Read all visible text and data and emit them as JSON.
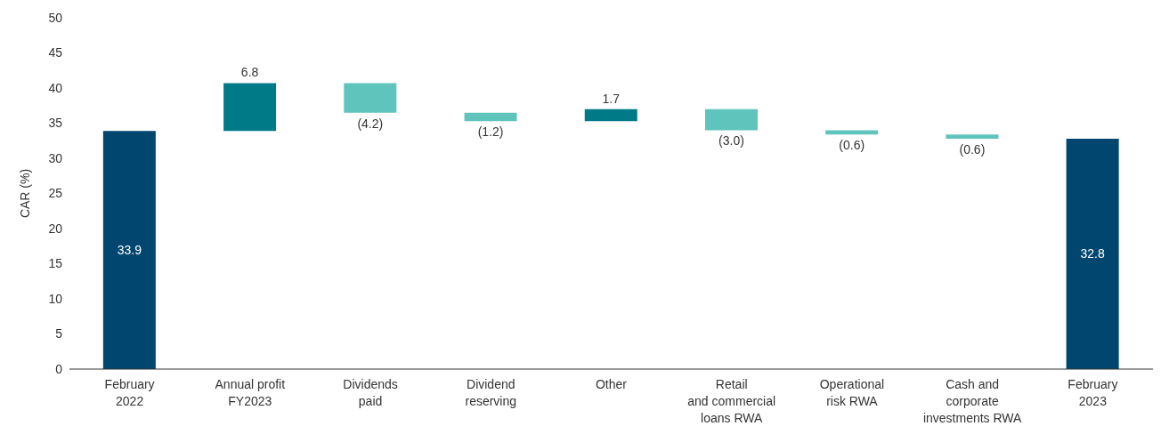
{
  "chart_data": {
    "type": "bar",
    "ylabel": "CAR (%)",
    "categories": [
      "February\n2022",
      "Annual profit\nFY2023",
      "Dividends\npaid",
      "Dividend\nreserving",
      "Other",
      "Retail\nand commercial\nloans RWA",
      "Operational\nrisk RWA",
      "Cash and\ncorporate\ninvestments RWA",
      "February\n2023"
    ],
    "values": [
      33.9,
      6.8,
      -4.2,
      -1.2,
      1.7,
      -3.0,
      -0.6,
      -0.6,
      32.8
    ],
    "base": [
      0,
      33.9,
      40.7,
      36.5,
      35.3,
      37.0,
      34.0,
      33.4,
      0
    ],
    "colors": [
      "#00466e",
      "#007a87",
      "#5fc4bb",
      "#5fc4bb",
      "#007a87",
      "#5fc4bb",
      "#5fc4bb",
      "#5fc4bb",
      "#00466e"
    ],
    "value_labels": [
      "33.9",
      "6.8",
      "(4.2)",
      "(1.2)",
      "1.7",
      "(3.0)",
      "(0.6)",
      "(0.6)",
      "32.8"
    ],
    "ylim": [
      0,
      50
    ],
    "yticks": [
      0,
      5,
      10,
      15,
      20,
      25,
      30,
      35,
      40,
      45,
      50
    ],
    "grid": false,
    "legend": false
  }
}
